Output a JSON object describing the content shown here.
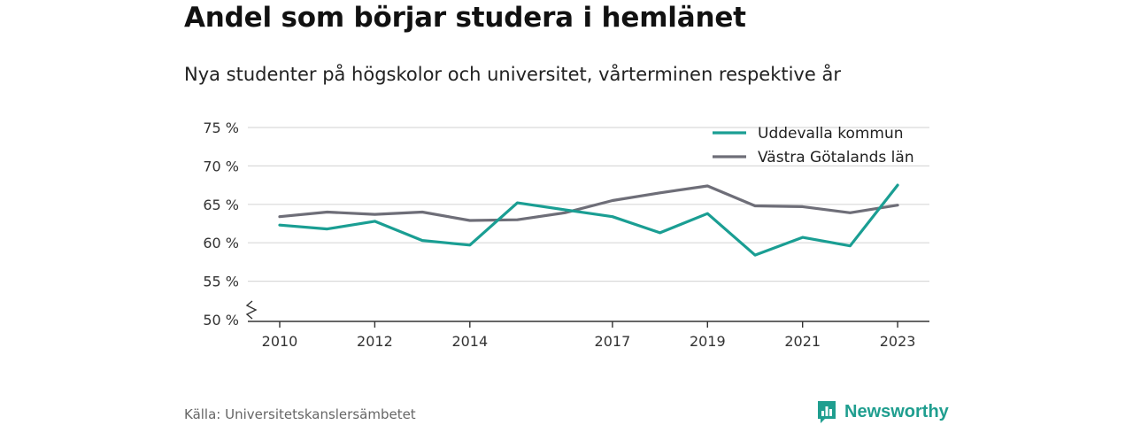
{
  "title": "Andel som börjar studera i hemlänet",
  "subtitle": "Nya studenter på högskolor och universitet, vårterminen respektive år",
  "source": "Källa: Universitetskanslersämbetet",
  "logo": {
    "text": "Newsworthy",
    "icon": "bar-chart-speech-bubble-icon",
    "color": "#1f9e8f"
  },
  "chart_data": {
    "type": "line",
    "x": [
      2010,
      2011,
      2012,
      2013,
      2014,
      2015,
      2016,
      2017,
      2018,
      2019,
      2020,
      2021,
      2022,
      2023
    ],
    "x_tick_labels": [
      "2010",
      "2012",
      "2014",
      "2017",
      "2019",
      "2021",
      "2023"
    ],
    "y_tick_labels": [
      "50 %",
      "55 %",
      "60 %",
      "65 %",
      "70 %",
      "75 %"
    ],
    "ylim": [
      50,
      75
    ],
    "y_axis_break": true,
    "grid": true,
    "legend_position": "top-right",
    "series": [
      {
        "name": "Uddevalla kommun",
        "color": "#1a9e93",
        "values": [
          62.3,
          61.8,
          62.8,
          60.3,
          59.7,
          65.2,
          64.3,
          63.4,
          61.3,
          63.8,
          58.4,
          60.7,
          59.6,
          67.5
        ]
      },
      {
        "name": "Västra Götalands län",
        "color": "#6e6e78",
        "values": [
          63.4,
          64.0,
          63.7,
          64.0,
          62.9,
          63.0,
          63.9,
          65.5,
          66.5,
          67.4,
          64.8,
          64.7,
          63.9,
          64.9
        ]
      }
    ]
  }
}
